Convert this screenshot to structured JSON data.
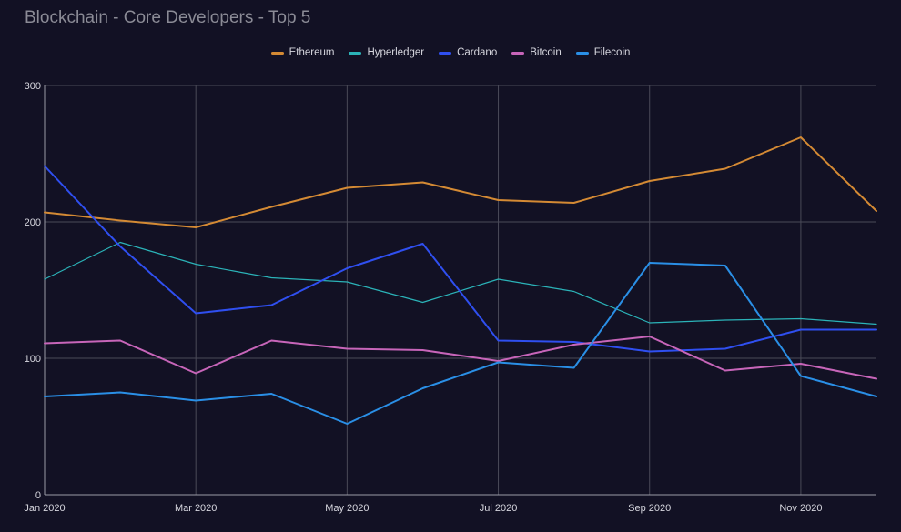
{
  "chart_data": {
    "type": "line",
    "title": "Blockchain - Core Developers - Top 5",
    "xlabel": "",
    "ylabel": "",
    "ylim": [
      0,
      300
    ],
    "yticks": [
      0,
      100,
      200,
      300
    ],
    "x": [
      "Jan 2020",
      "Feb 2020",
      "Mar 2020",
      "Apr 2020",
      "May 2020",
      "Jun 2020",
      "Jul 2020",
      "Aug 2020",
      "Sep 2020",
      "Oct 2020",
      "Nov 2020",
      "Dec 2020"
    ],
    "x_tick_labels": [
      "Jan 2020",
      "Mar 2020",
      "May 2020",
      "Jul 2020",
      "Sep 2020",
      "Nov 2020"
    ],
    "grid": true,
    "legend_position": "top-center",
    "series": [
      {
        "name": "Ethereum",
        "color": "#d48a34",
        "values": [
          207,
          201,
          196,
          211,
          225,
          229,
          216,
          214,
          230,
          239,
          262,
          208
        ]
      },
      {
        "name": "Hyperledger",
        "color": "#2bb3b8",
        "values": [
          158,
          185,
          169,
          159,
          156,
          141,
          158,
          149,
          126,
          128,
          129,
          125
        ]
      },
      {
        "name": "Cardano",
        "color": "#2f4ff0",
        "values": [
          241,
          182,
          133,
          139,
          166,
          184,
          113,
          112,
          105,
          107,
          121,
          121
        ]
      },
      {
        "name": "Bitcoin",
        "color": "#c765b9",
        "values": [
          111,
          113,
          89,
          113,
          107,
          106,
          98,
          110,
          116,
          91,
          96,
          85
        ]
      },
      {
        "name": "Filecoin",
        "color": "#2a8fe6",
        "values": [
          72,
          75,
          69,
          74,
          52,
          78,
          97,
          93,
          170,
          168,
          87,
          72
        ]
      }
    ]
  }
}
